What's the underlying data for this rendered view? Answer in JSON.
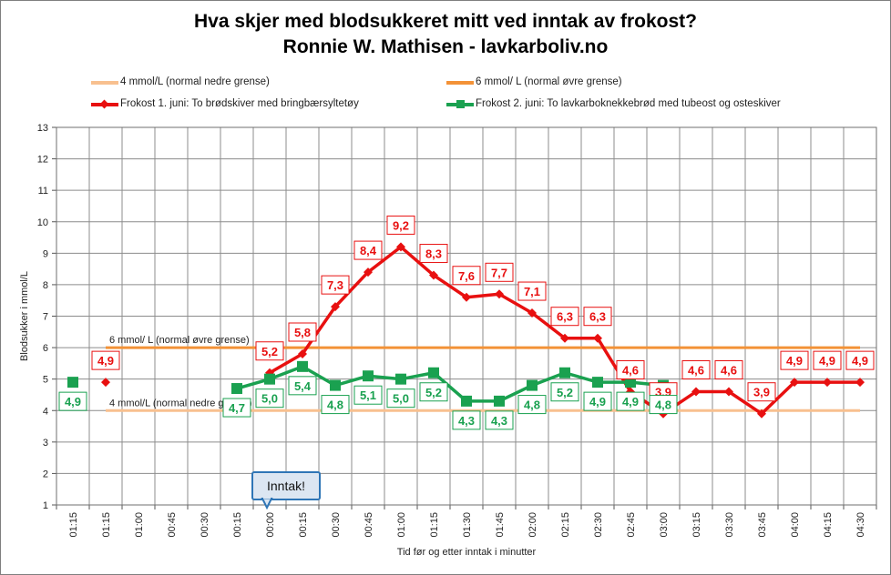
{
  "title": "Hva skjer med blodsukkeret mitt ved inntak av frokost?",
  "subtitle": "Ronnie W. Mathisen - lavkarboliv.no",
  "callout": "Inntak!",
  "legend": [
    {
      "label": "4 mmol/L (normal nedre grense)",
      "color": "#f8c08f"
    },
    {
      "label": "6 mmol/ L (normal øvre grense)",
      "color": "#f39237"
    },
    {
      "label": "Frokost 1. juni: To brødskiver med bringbærsyltetøy",
      "color": "#e81010"
    },
    {
      "label": "Frokost 2. juni: To lavkarboknekkebrød med tubeost og osteskiver",
      "color": "#1aa150"
    }
  ],
  "chart_data": {
    "type": "line",
    "xlabel": "Tid før og etter  inntak i minutter",
    "ylabel": "Blodsukker i mmol/L",
    "ylim": [
      1,
      13
    ],
    "yticks": [
      1,
      2,
      3,
      4,
      5,
      6,
      7,
      8,
      9,
      10,
      11,
      12,
      13
    ],
    "categories": [
      "01:15",
      "01:15",
      "01:00",
      "00:45",
      "00:30",
      "00:15",
      "00:00",
      "00:15",
      "00:30",
      "00:45",
      "01:00",
      "01:15",
      "01:30",
      "01:45",
      "02:00",
      "02:15",
      "02:30",
      "02:45",
      "03:00",
      "03:15",
      "03:30",
      "03:45",
      "04:00",
      "04:15",
      "04:30"
    ],
    "grid": true,
    "legend_position": "top",
    "reference_lines": [
      {
        "name": "4 mmol/L (normal nedre grense)",
        "value": 4,
        "label": "4 mmol/L (normal nedre grense)",
        "color": "#f8c08f"
      },
      {
        "name": "6 mmol/ L (normal øvre grense)",
        "value": 6,
        "label": "6 mmol/ L (normal øvre grense)",
        "color": "#f39237"
      }
    ],
    "series": [
      {
        "name": "Frokost 1. juni: To brødskiver med bringbærsyltetøy",
        "color": "#e81010",
        "marker": "diamond",
        "values": [
          null,
          4.9,
          null,
          null,
          null,
          null,
          5.2,
          5.8,
          7.3,
          8.4,
          9.2,
          8.3,
          7.6,
          7.7,
          7.1,
          6.3,
          6.3,
          4.6,
          3.9,
          4.6,
          4.6,
          3.9,
          4.9,
          4.9,
          4.9
        ],
        "labels": [
          null,
          "4,9",
          null,
          null,
          null,
          null,
          "5,2",
          "5,8",
          "7,3",
          "8,4",
          "9,2",
          "8,3",
          "7,6",
          "7,7",
          "7,1",
          "6,3",
          "6,3",
          "4,6",
          "3,9",
          "4,6",
          "4,6",
          "3,9",
          "4,9",
          "4,9",
          "4,9"
        ]
      },
      {
        "name": "Frokost 2. juni: To lavkarboknekkebrød med tubeost og osteskiver",
        "color": "#1aa150",
        "marker": "square",
        "values": [
          4.9,
          null,
          null,
          null,
          null,
          4.7,
          5.0,
          5.4,
          4.8,
          5.1,
          5.0,
          5.2,
          4.3,
          4.3,
          4.8,
          5.2,
          4.9,
          4.9,
          4.8,
          null,
          null,
          null,
          null,
          null,
          null
        ],
        "labels": [
          "4,9",
          null,
          null,
          null,
          null,
          "4,7",
          "5,0",
          "5,4",
          "4,8",
          "5,1",
          "5,0",
          "5,2",
          "4,3",
          "4,3",
          "4,8",
          "5,2",
          "4,9",
          "4,9",
          "4,8",
          null,
          null,
          null,
          null,
          null,
          null
        ]
      }
    ]
  }
}
